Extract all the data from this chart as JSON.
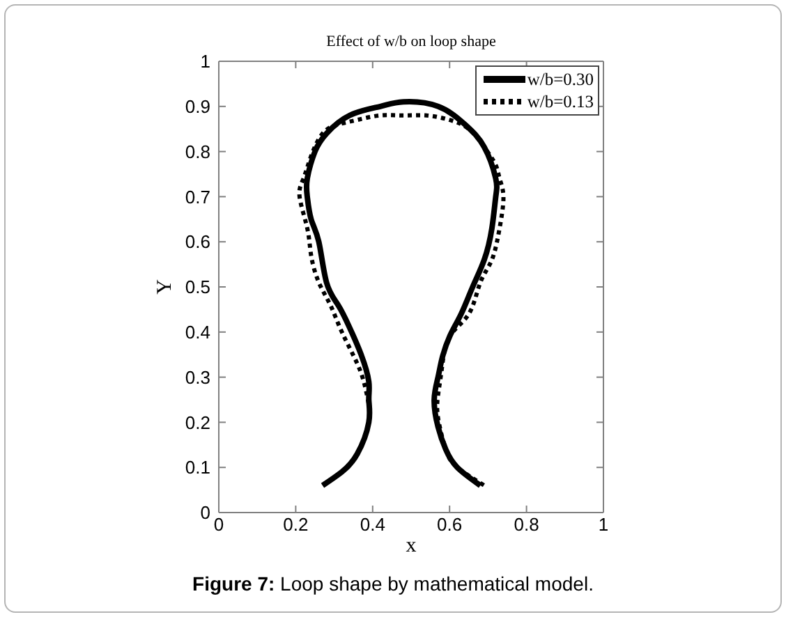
{
  "chart_data": {
    "type": "line",
    "title": "Effect of w/b on loop shape",
    "xlabel": "x",
    "ylabel": "Y",
    "annotations": [
      "Figure 7: Loop shape by mathematical model."
    ],
    "xlim": [
      0,
      1
    ],
    "ylim": [
      0,
      1
    ],
    "xticks": [
      0,
      0.2,
      0.4,
      0.6,
      0.8,
      1
    ],
    "yticks": [
      0,
      0.1,
      0.2,
      0.3,
      0.4,
      0.5,
      0.6,
      0.7,
      0.8,
      0.9,
      1
    ],
    "legend": "top right",
    "series": [
      {
        "name": "w/b=0.30",
        "color": "#000000",
        "line_style": "solid",
        "x": [
          0.27,
          0.32,
          0.36,
          0.39,
          0.39,
          0.39,
          0.37,
          0.34,
          0.31,
          0.28,
          0.26,
          0.24,
          0.23,
          0.23,
          0.25,
          0.28,
          0.34,
          0.42,
          0.48,
          0.57,
          0.64,
          0.69,
          0.72,
          0.72,
          0.71,
          0.69,
          0.66,
          0.63,
          0.6,
          0.58,
          0.57,
          0.56,
          0.57,
          0.59,
          0.62,
          0.68
        ],
        "values": [
          0.06,
          0.09,
          0.13,
          0.2,
          0.25,
          0.29,
          0.35,
          0.41,
          0.46,
          0.51,
          0.6,
          0.65,
          0.7,
          0.74,
          0.8,
          0.84,
          0.88,
          0.9,
          0.91,
          0.9,
          0.86,
          0.81,
          0.74,
          0.7,
          0.63,
          0.56,
          0.5,
          0.44,
          0.39,
          0.34,
          0.3,
          0.25,
          0.19,
          0.14,
          0.1,
          0.06
        ]
      },
      {
        "name": "w/b=0.13",
        "color": "#000000",
        "line_style": "dotted",
        "x": [
          0.27,
          0.32,
          0.36,
          0.39,
          0.39,
          0.38,
          0.36,
          0.32,
          0.29,
          0.26,
          0.24,
          0.23,
          0.21,
          0.22,
          0.24,
          0.27,
          0.31,
          0.36,
          0.42,
          0.48,
          0.54,
          0.6,
          0.65,
          0.69,
          0.72,
          0.73,
          0.74,
          0.73,
          0.71,
          0.68,
          0.65,
          0.6,
          0.58,
          0.57,
          0.57,
          0.59,
          0.62,
          0.69
        ],
        "values": [
          0.06,
          0.09,
          0.13,
          0.2,
          0.24,
          0.28,
          0.33,
          0.4,
          0.46,
          0.51,
          0.57,
          0.63,
          0.7,
          0.74,
          0.79,
          0.84,
          0.86,
          0.87,
          0.88,
          0.88,
          0.88,
          0.87,
          0.85,
          0.81,
          0.77,
          0.74,
          0.7,
          0.63,
          0.56,
          0.51,
          0.44,
          0.39,
          0.32,
          0.26,
          0.21,
          0.14,
          0.1,
          0.06
        ]
      }
    ]
  }
}
